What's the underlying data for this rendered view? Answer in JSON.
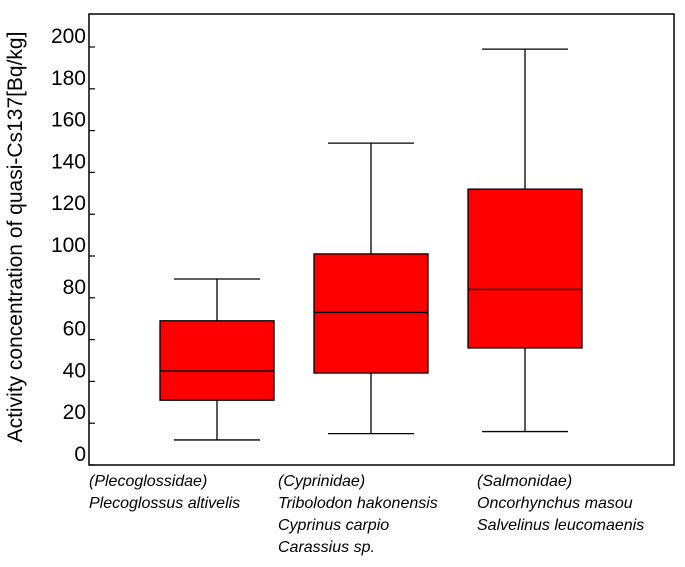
{
  "chart_data": {
    "type": "boxplot",
    "title": "",
    "xlabel": "",
    "ylabel": "Activity concentration of quasi-Cs137[Bq/kg]",
    "ylim": [
      0,
      220
    ],
    "yticks": [
      0,
      20,
      40,
      60,
      80,
      100,
      120,
      140,
      160,
      180,
      200
    ],
    "grid": false,
    "box_color": "#ff0000",
    "categories": [
      {
        "family": "(Plecoglossidae)",
        "species": [
          "Plecoglossus altivelis"
        ],
        "whisker_low": 12,
        "q1": 31,
        "median": 45,
        "q3": 69,
        "whisker_high": 89
      },
      {
        "family": "(Cyprinidae)",
        "species": [
          "Tribolodon hakonensis",
          "Cyprinus carpio",
          "Carassius sp."
        ],
        "whisker_low": 15,
        "q1": 44,
        "median": 73,
        "q3": 101,
        "whisker_high": 154
      },
      {
        "family": "(Salmonidae)",
        "species": [
          "Oncorhynchus masou",
          "Salvelinus leucomaenis"
        ],
        "whisker_low": 16,
        "q1": 56,
        "median": 84,
        "q3": 132,
        "whisker_high": 199
      }
    ]
  }
}
